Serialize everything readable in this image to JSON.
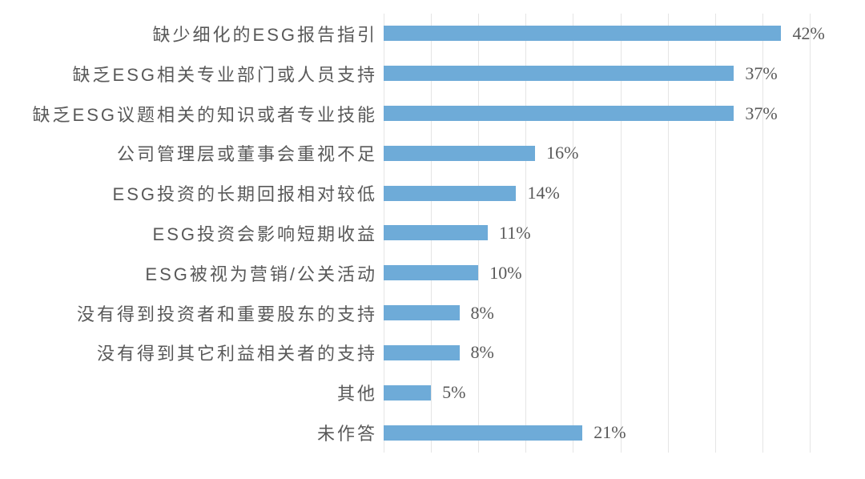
{
  "chart_data": {
    "type": "bar",
    "orientation": "horizontal",
    "title": "",
    "xlabel": "",
    "ylabel": "",
    "categories": [
      "缺少细化的ESG报告指引",
      "缺乏ESG相关专业部门或人员支持",
      "缺乏ESG议题相关的知识或者专业技能",
      "公司管理层或董事会重视不足",
      "ESG投资的长期回报相对较低",
      "ESG投资会影响短期收益",
      "ESG被视为营销/公关活动",
      "没有得到投资者和重要股东的支持",
      "没有得到其它利益相关者的支持",
      "其他",
      "未作答"
    ],
    "values": [
      42,
      37,
      37,
      16,
      14,
      11,
      10,
      8,
      8,
      5,
      21
    ],
    "value_labels": [
      "42%",
      "37%",
      "37%",
      "16%",
      "14%",
      "11%",
      "10%",
      "8%",
      "8%",
      "5%",
      "21%"
    ],
    "xlim": [
      0,
      45
    ],
    "gridline_step_pct": 5,
    "grid": "vertical-only",
    "legend": "none",
    "data_labels": "outside-end",
    "colors": {
      "bar": "#6eabd8",
      "gridline": "#e5e5e5",
      "label_text": "#595959",
      "value_text": "#595959",
      "background": "#ffffff"
    }
  }
}
